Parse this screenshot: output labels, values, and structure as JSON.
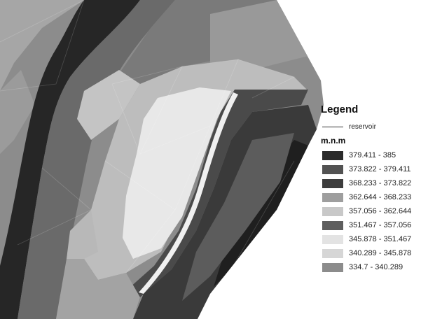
{
  "legend": {
    "title": "Legend",
    "line_item": {
      "label": "reservoir",
      "color": "#333333"
    },
    "units_label": "m.n.m",
    "classes": [
      {
        "label": "379.411 - 385",
        "color": "#2b2b2b"
      },
      {
        "label": "373.822 - 379.411",
        "color": "#525252"
      },
      {
        "label": "368.233 - 373.822",
        "color": "#3d3d3d"
      },
      {
        "label": "362.644 - 368.233",
        "color": "#9e9e9e"
      },
      {
        "label": "357.056 - 362.644",
        "color": "#c8c8c8"
      },
      {
        "label": "351.467 - 357.056",
        "color": "#5e5e5e"
      },
      {
        "label": "345.878 - 351.467",
        "color": "#e3e3e3"
      },
      {
        "label": "340.289 - 345.878",
        "color": "#d6d6d6"
      },
      {
        "label": "334.7 - 340.289",
        "color": "#8c8c8c"
      }
    ]
  }
}
